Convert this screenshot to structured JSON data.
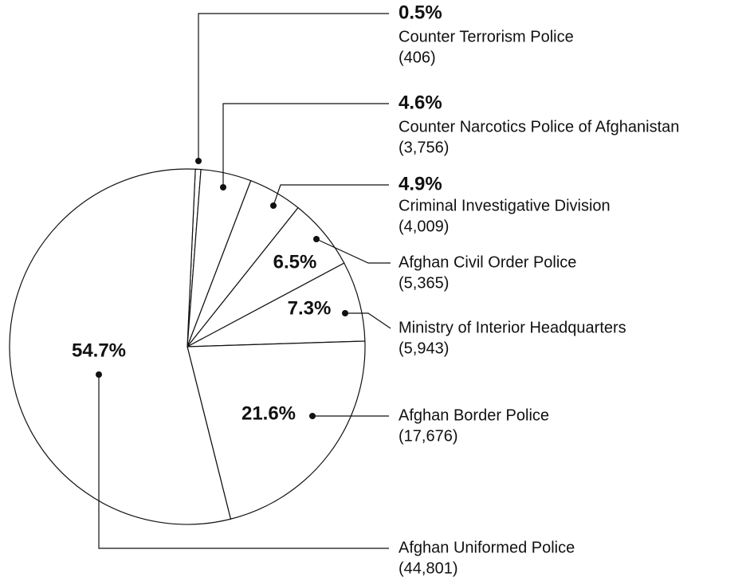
{
  "chart_data": {
    "type": "pie",
    "categories": [
      "Counter Terrorism Police",
      "Counter Narcotics Police of Afghanistan",
      "Criminal Investigative Division",
      "Afghan Civil Order Police",
      "Ministry of Interior Headquarters",
      "Afghan Border Police",
      "Afghan Uniformed Police"
    ],
    "values": [
      0.5,
      4.6,
      4.9,
      6.5,
      7.3,
      21.6,
      54.7
    ],
    "value_labels": [
      "0.5%",
      "4.6%",
      "4.9%",
      "6.5%",
      "7.3%",
      "21.6%",
      "54.7%"
    ],
    "counts": [
      406,
      3756,
      4009,
      5365,
      5943,
      17676,
      44801
    ],
    "count_labels": [
      "(406)",
      "(3,756)",
      "(4,009)",
      "(5,365)",
      "(5,943)",
      "(17,676)",
      "(44,801)"
    ],
    "color": "#ffffff"
  }
}
